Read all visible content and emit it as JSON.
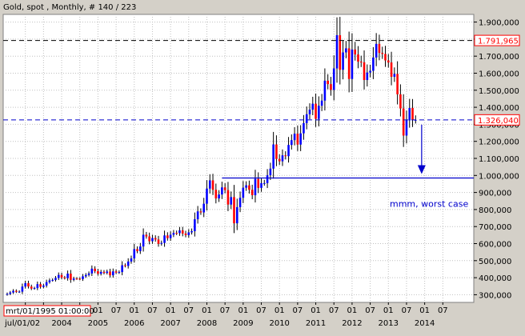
{
  "header": {
    "title": "Gold, spot , Monthly, # 140 / 223"
  },
  "chart_data": {
    "type": "candlestick",
    "x_months": [
      "2002-07",
      "2002-08",
      "2002-09",
      "2002-10",
      "2002-11",
      "2002-12",
      "2003-01",
      "2003-02",
      "2003-03",
      "2003-04",
      "2003-05",
      "2003-06",
      "2003-07",
      "2003-08",
      "2003-09",
      "2003-10",
      "2003-11",
      "2003-12",
      "2004-01",
      "2004-02",
      "2004-03",
      "2004-04",
      "2004-05",
      "2004-06",
      "2004-07",
      "2004-08",
      "2004-09",
      "2004-10",
      "2004-11",
      "2004-12",
      "2005-01",
      "2005-02",
      "2005-03",
      "2005-04",
      "2005-05",
      "2005-06",
      "2005-07",
      "2005-08",
      "2005-09",
      "2005-10",
      "2005-11",
      "2005-12",
      "2006-01",
      "2006-02",
      "2006-03",
      "2006-04",
      "2006-05",
      "2006-06",
      "2006-07",
      "2006-08",
      "2006-09",
      "2006-10",
      "2006-11",
      "2006-12",
      "2007-01",
      "2007-02",
      "2007-03",
      "2007-04",
      "2007-05",
      "2007-06",
      "2007-07",
      "2007-08",
      "2007-09",
      "2007-10",
      "2007-11",
      "2007-12",
      "2008-01",
      "2008-02",
      "2008-03",
      "2008-04",
      "2008-05",
      "2008-06",
      "2008-07",
      "2008-08",
      "2008-09",
      "2008-10",
      "2008-11",
      "2008-12",
      "2009-01",
      "2009-02",
      "2009-03",
      "2009-04",
      "2009-05",
      "2009-06",
      "2009-07",
      "2009-08",
      "2009-09",
      "2009-10",
      "2009-11",
      "2009-12",
      "2010-01",
      "2010-02",
      "2010-03",
      "2010-04",
      "2010-05",
      "2010-06",
      "2010-07",
      "2010-08",
      "2010-09",
      "2010-10",
      "2010-11",
      "2010-12",
      "2011-01",
      "2011-02",
      "2011-03",
      "2011-04",
      "2011-05",
      "2011-06",
      "2011-07",
      "2011-08",
      "2011-09",
      "2011-10",
      "2011-11",
      "2011-12",
      "2012-01",
      "2012-02",
      "2012-03",
      "2012-04",
      "2012-05",
      "2012-06",
      "2012-07",
      "2012-08",
      "2012-09",
      "2012-10",
      "2012-11",
      "2012-12",
      "2013-01",
      "2013-02",
      "2013-03",
      "2013-04",
      "2013-05",
      "2013-06",
      "2013-07",
      "2013-08",
      "2013-09",
      "2013-10"
    ],
    "close": [
      305,
      313,
      323,
      317,
      318,
      348,
      368,
      348,
      336,
      339,
      362,
      346,
      354,
      374,
      384,
      387,
      398,
      416,
      401,
      397,
      424,
      387,
      395,
      394,
      392,
      408,
      416,
      425,
      453,
      438,
      423,
      434,
      428,
      436,
      414,
      437,
      430,
      433,
      473,
      469,
      495,
      513,
      568,
      556,
      583,
      652,
      642,
      614,
      633,
      624,
      599,
      604,
      648,
      632,
      652,
      663,
      661,
      678,
      659,
      650,
      666,
      673,
      743,
      789,
      783,
      834,
      923,
      971,
      916,
      865,
      888,
      930,
      914,
      829,
      873,
      719,
      814,
      869,
      928,
      942,
      916,
      884,
      980,
      927,
      955,
      955,
      1001,
      1040,
      1182,
      1097,
      1083,
      1118,
      1113,
      1179,
      1207,
      1245,
      1181,
      1247,
      1307,
      1359,
      1386,
      1421,
      1332,
      1409,
      1439,
      1556,
      1536,
      1502,
      1628,
      1823,
      1620,
      1722,
      1746,
      1566,
      1739,
      1710,
      1668,
      1664,
      1560,
      1604,
      1614,
      1692,
      1772,
      1719,
      1713,
      1675,
      1663,
      1579,
      1596,
      1476,
      1393,
      1234,
      1323,
      1396,
      1326,
      1326
    ],
    "current_price_label": "1.326,040",
    "high_level_label": "1.791,965",
    "current_price": 1326.04,
    "high_level": 1791.965,
    "worst_case_level": 985,
    "worst_case_arrow_months": [
      "2013-10",
      "2013-12"
    ],
    "annotation": "mmm, worst case",
    "y_ticks": [
      300000,
      400000,
      500000,
      600000,
      700000,
      800000,
      900000,
      1000000,
      1100000,
      1200000,
      1300000,
      1400000,
      1500000,
      1600000,
      1700000,
      1800000,
      1900000
    ],
    "y_tick_labels": [
      "300,000",
      "400,000",
      "500,000",
      "600,000",
      "700,000",
      "800,000",
      "900,000",
      "1.000,000",
      "1.100,000",
      "1.200,000",
      "1.300,000",
      "1.400,000",
      "1.500,000",
      "1.600,000",
      "1.700,000",
      "1.800,000",
      "1.900,000"
    ],
    "y_range": [
      255,
      1945
    ],
    "x_ticks_row1": [
      {
        "month": "2003-01",
        "label": "01"
      },
      {
        "month": "2003-07",
        "label": "07"
      },
      {
        "month": "2004-01",
        "label": "01"
      },
      {
        "month": "2004-07",
        "label": "07"
      },
      {
        "month": "2005-01",
        "label": "01"
      },
      {
        "month": "2005-07",
        "label": "07"
      },
      {
        "month": "2006-01",
        "label": "01"
      },
      {
        "month": "2006-07",
        "label": "07"
      },
      {
        "month": "2007-01",
        "label": "01"
      },
      {
        "month": "2007-07",
        "label": "07"
      },
      {
        "month": "2008-01",
        "label": "01"
      },
      {
        "month": "2008-07",
        "label": "07"
      },
      {
        "month": "2009-01",
        "label": "01"
      },
      {
        "month": "2009-07",
        "label": "07"
      },
      {
        "month": "2010-01",
        "label": "01"
      },
      {
        "month": "2010-07",
        "label": "07"
      },
      {
        "month": "2011-01",
        "label": "01"
      },
      {
        "month": "2011-07",
        "label": "07"
      },
      {
        "month": "2012-01",
        "label": "01"
      },
      {
        "month": "2012-07",
        "label": "07"
      },
      {
        "month": "2013-01",
        "label": "01"
      },
      {
        "month": "2013-07",
        "label": "07"
      },
      {
        "month": "2014-01",
        "label": "01"
      },
      {
        "month": "2014-07",
        "label": "07"
      }
    ],
    "x_ticks_row2": [
      {
        "month": "2002-07",
        "label": "jul/01/02"
      },
      {
        "month": "2004-01",
        "label": "2004"
      },
      {
        "month": "2005-01",
        "label": "2005"
      },
      {
        "month": "2006-01",
        "label": "2006"
      },
      {
        "month": "2007-01",
        "label": "2007"
      },
      {
        "month": "2008-01",
        "label": "2008"
      },
      {
        "month": "2009-01",
        "label": "2009"
      },
      {
        "month": "2010-01",
        "label": "2010"
      },
      {
        "month": "2011-01",
        "label": "2011"
      },
      {
        "month": "2012-01",
        "label": "2012"
      },
      {
        "month": "2013-01",
        "label": "2013"
      },
      {
        "month": "2014-01",
        "label": "2014"
      }
    ],
    "cursor_date_label": "mrt/01/1995 01:00:00",
    "colors": {
      "up": "#0000ff",
      "down": "#ff0000",
      "wick": "#000000",
      "price_line": "#0000cc",
      "high_line": "#000000",
      "background": "#ffffff",
      "frame": "#d4d0c8",
      "label_box": "#ff0000"
    },
    "grid": true
  }
}
